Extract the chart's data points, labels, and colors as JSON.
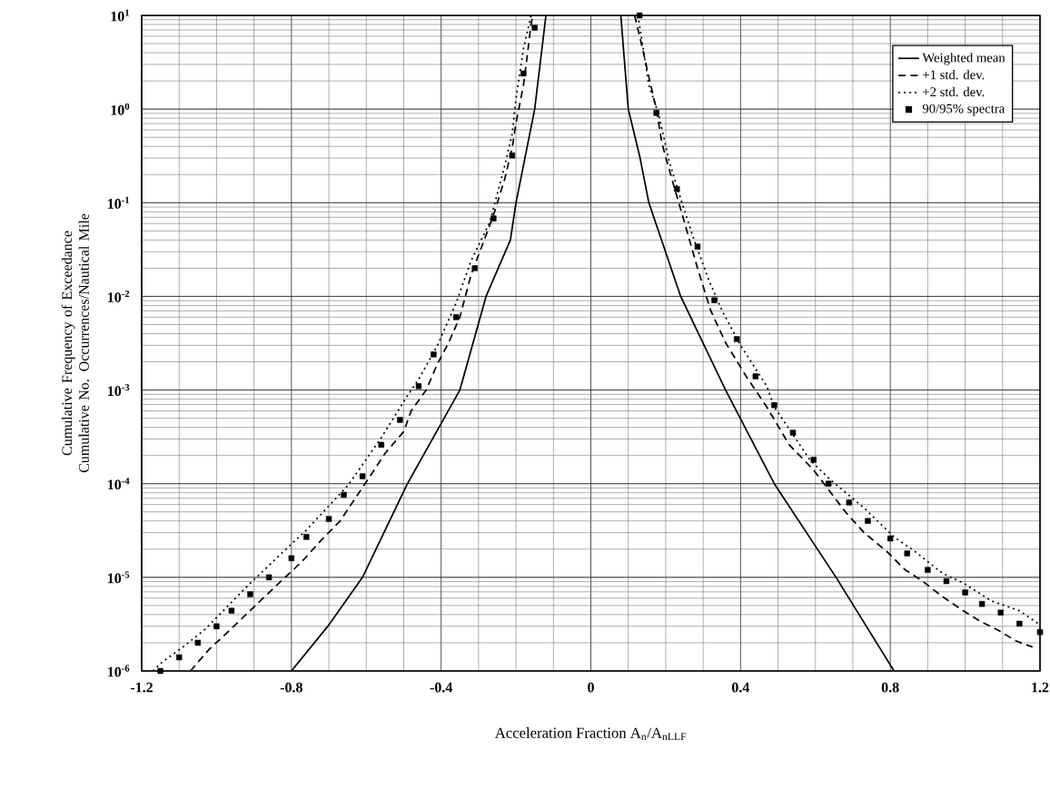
{
  "chart_data": {
    "type": "line",
    "xlabel": "Acceleration Fraction A$_{n}$/A$_{nLLF}$",
    "ylabel": "Cumulative Frequency of Exceedance Cumulative No. Occurrences/Nautical Mile",
    "xlim": [
      -1.2,
      1.2
    ],
    "ylim": [
      1e-06,
      10
    ],
    "xticks": [
      -1.2,
      -0.8,
      -0.4,
      0,
      0.4,
      0.8,
      1.2
    ],
    "yticks": [
      {
        "value": 1e-06,
        "label": "10$^{-6}$"
      },
      {
        "value": 1e-05,
        "label": "10$^{-5}$"
      },
      {
        "value": 0.0001,
        "label": "10$^{-4}$"
      },
      {
        "value": 0.001,
        "label": "10$^{-3}$"
      },
      {
        "value": 0.01,
        "label": "10$^{-2}$"
      },
      {
        "value": 0.1,
        "label": "10$^{-1}$"
      },
      {
        "value": 1,
        "label": "10$^{0}$"
      },
      {
        "value": 10,
        "label": "10$^{1}$"
      }
    ],
    "log": "y",
    "grid": true,
    "legend": "top right",
    "series": [
      {
        "name": "Weighted mean",
        "color": "#000000",
        "line_style": "solid",
        "x": [
          -0.8,
          -0.7,
          -0.61,
          -0.49,
          -0.35,
          -0.28,
          -0.215,
          -0.2,
          -0.15,
          -0.12,
          null,
          0.08,
          0.1,
          0.13,
          0.155,
          0.24,
          0.36,
          0.49,
          0.655,
          0.81
        ],
        "values": [
          1e-06,
          3.1e-06,
          1e-05,
          0.0001,
          0.001,
          0.01,
          0.04,
          0.1,
          1,
          10,
          null,
          10,
          1,
          0.32,
          0.1,
          0.01,
          0.001,
          0.0001,
          1e-05,
          1e-06
        ]
      },
      {
        "name": "+1 std. dev.",
        "color": "#000000",
        "line_style": "dashed",
        "x": [
          -1.07,
          -1.02,
          -0.97,
          -0.87,
          -0.77,
          -0.72,
          -0.67,
          -0.59,
          -0.55,
          -0.5,
          -0.48,
          -0.44,
          -0.41,
          -0.38,
          -0.35,
          -0.32,
          -0.28,
          -0.26,
          -0.23,
          -0.21,
          -0.2,
          -0.18,
          -0.17,
          -0.16,
          -0.155,
          null,
          0.117,
          0.14,
          0.155,
          0.175,
          0.19,
          0.22,
          0.25,
          0.285,
          0.32,
          0.36,
          0.415,
          0.47,
          0.53,
          0.595,
          0.68,
          0.73,
          0.79,
          0.84,
          0.88,
          0.94,
          0.995,
          1.04,
          1.09,
          1.135,
          1.18
        ],
        "values": [
          1e-06,
          1.7e-06,
          2.6e-06,
          6.3e-06,
          1.5e-05,
          2.5e-05,
          4e-05,
          0.00012,
          0.00021,
          0.00036,
          0.0006,
          0.001,
          0.0019,
          0.0032,
          0.006,
          0.017,
          0.045,
          0.074,
          0.18,
          0.39,
          0.71,
          1.8,
          3.7,
          7.9,
          10,
          null,
          10,
          4.1,
          2.2,
          1,
          0.43,
          0.16,
          0.062,
          0.02,
          0.0071,
          0.0032,
          0.0014,
          0.00066,
          0.00026,
          0.00014,
          5e-05,
          3e-05,
          1.9e-05,
          1.2e-05,
          9.5e-06,
          6.2e-06,
          4.4e-06,
          3.4e-06,
          2.7e-06,
          2.1e-06,
          1.8e-06
        ]
      },
      {
        "name": "+2 std. dev.",
        "color": "#000000",
        "line_style": "dotted",
        "x": [
          -1.17,
          -1.15,
          -1.09,
          -1.03,
          -0.92,
          -0.84,
          -0.76,
          -0.65,
          -0.62,
          -0.56,
          -0.49,
          -0.46,
          -0.41,
          -0.36,
          -0.32,
          -0.27,
          -0.23,
          -0.21,
          -0.2,
          -0.18,
          -0.16,
          null,
          0.126,
          0.155,
          0.18,
          0.21,
          0.24,
          0.275,
          0.315,
          0.35,
          0.4,
          0.47,
          0.49,
          0.585,
          0.64,
          0.73,
          0.81,
          0.865,
          0.94,
          0.995,
          1.07,
          1.145,
          1.2
        ],
        "values": [
          1e-06,
          1.2e-06,
          1.8e-06,
          2.8e-06,
          7.9e-06,
          1.6e-05,
          3.2e-05,
          9.5e-05,
          0.00014,
          0.00031,
          0.00087,
          0.0013,
          0.003,
          0.0085,
          0.024,
          0.062,
          0.25,
          0.55,
          1.3,
          4.4,
          10,
          null,
          10,
          1.8,
          0.91,
          0.27,
          0.11,
          0.041,
          0.015,
          0.0071,
          0.003,
          0.0011,
          0.00066,
          0.00018,
          0.00011,
          5.5e-05,
          2.7e-05,
          1.9e-05,
          1.1e-05,
          8.7e-06,
          5.6e-06,
          4.4e-06,
          3.1e-06
        ]
      },
      {
        "name": "90/95% spectra",
        "type": "scatter",
        "marker": "square",
        "color": "#000000",
        "x": [
          -1.15,
          -1.1,
          -1.05,
          -1.0,
          -0.96,
          -0.91,
          -0.86,
          -0.8,
          -0.76,
          -0.7,
          -0.66,
          -0.61,
          -0.56,
          -0.51,
          -0.46,
          -0.42,
          -0.36,
          -0.31,
          -0.26,
          -0.21,
          -0.18,
          -0.15,
          0.13,
          0.175,
          0.23,
          0.285,
          0.33,
          0.39,
          0.44,
          0.49,
          0.54,
          0.595,
          0.635,
          0.69,
          0.74,
          0.8,
          0.845,
          0.9,
          0.95,
          1.0,
          1.045,
          1.095,
          1.145,
          1.2
        ],
        "values": [
          1e-06,
          1.4e-06,
          2e-06,
          3e-06,
          4.4e-06,
          6.6e-06,
          1e-05,
          1.6e-05,
          2.7e-05,
          4.2e-05,
          7.6e-05,
          0.00012,
          0.00026,
          0.00048,
          0.0011,
          0.0024,
          0.006,
          0.02,
          0.068,
          0.32,
          2.4,
          7.4,
          10,
          0.91,
          0.14,
          0.034,
          0.0091,
          0.0035,
          0.0014,
          0.00069,
          0.00035,
          0.00018,
          0.0001,
          6.3e-05,
          4e-05,
          2.6e-05,
          1.8e-05,
          1.2e-05,
          9.1e-06,
          6.9e-06,
          5.2e-06,
          4.2e-06,
          3.2e-06,
          2.6e-06
        ]
      }
    ]
  }
}
